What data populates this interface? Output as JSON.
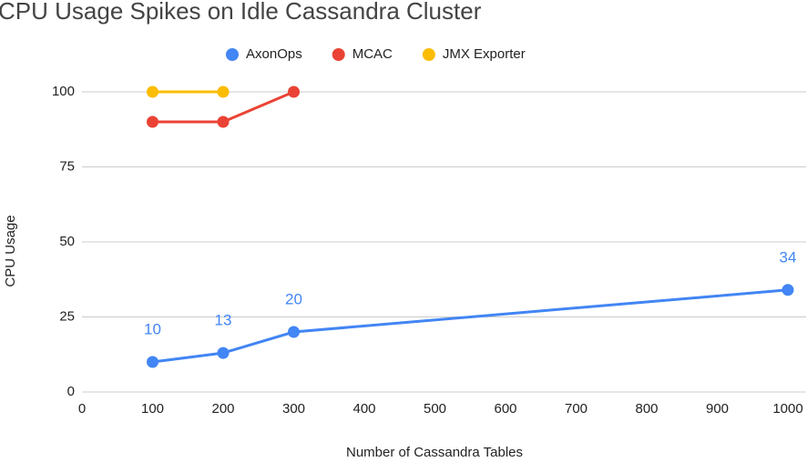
{
  "chart_data": {
    "type": "line",
    "title": "CPU Usage Spikes on Idle Cassandra Cluster",
    "x_label": "Number of Cassandra Tables",
    "y_label": "CPU Usage",
    "x": [
      100,
      200,
      300,
      1000
    ],
    "series": [
      {
        "name": "AxonOps",
        "color": "#4285f4",
        "values": [
          10,
          13,
          20,
          34
        ],
        "show_values": true
      },
      {
        "name": "MCAC",
        "color": "#ea4335",
        "values": [
          90,
          90,
          100,
          null
        ],
        "show_values": false
      },
      {
        "name": "JMX Exporter",
        "color": "#fbbc04",
        "values": [
          100,
          100,
          null,
          null
        ],
        "show_values": false
      }
    ],
    "xlim": [
      0,
      1000
    ],
    "xticks": [
      0,
      100,
      200,
      300,
      400,
      500,
      600,
      700,
      800,
      900,
      1000
    ],
    "ylim": [
      0,
      100
    ],
    "yticks": [
      0,
      25,
      50,
      75,
      100
    ],
    "grid": true,
    "legend": "top"
  }
}
